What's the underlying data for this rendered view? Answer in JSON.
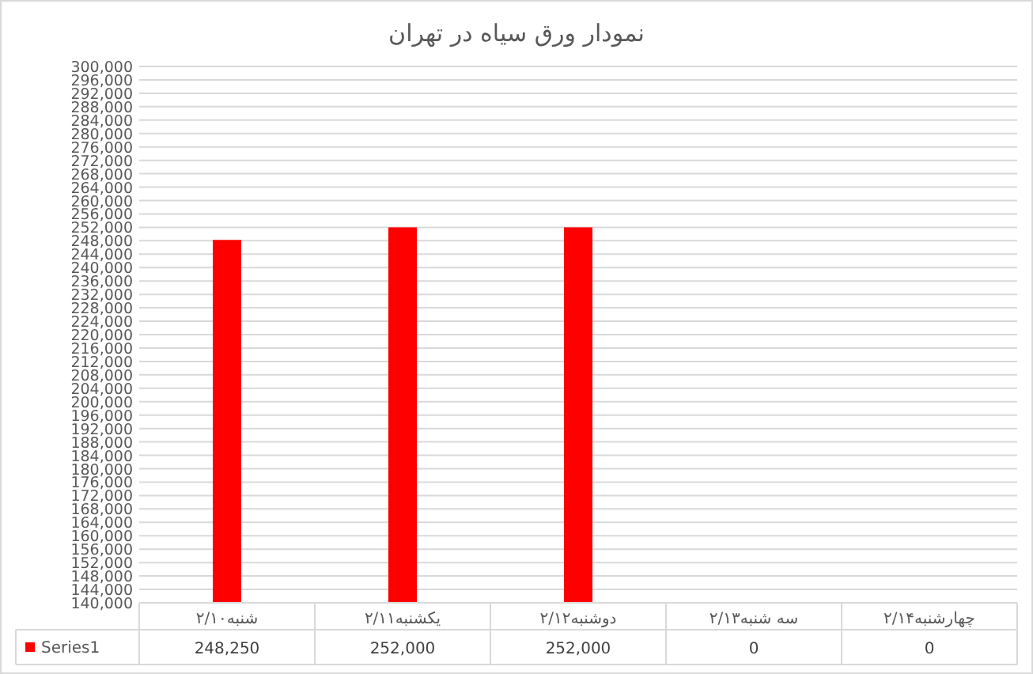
{
  "chart_data": {
    "type": "bar",
    "title": "نمودار ورق سیاه در تهران",
    "categories": [
      "شنبه۲/۱۰",
      "یکشنبه۲/۱۱",
      "دوشنبه۲/۱۲",
      "سه شنبه۲/۱۳",
      "چهارشنبه۲/۱۴"
    ],
    "series": [
      {
        "name": "Series1",
        "color": "#ff0000",
        "values": [
          248250,
          252000,
          252000,
          null,
          null
        ],
        "value_labels": [
          "248,250",
          "252,000",
          "252,000",
          "0",
          "0"
        ]
      }
    ],
    "ylim": [
      140000,
      300000
    ],
    "yticks": [
      {
        "value": 140000,
        "label": "140,000"
      },
      {
        "value": 144000,
        "label": "144,000"
      },
      {
        "value": 148000,
        "label": "148,000"
      },
      {
        "value": 152000,
        "label": "152,000"
      },
      {
        "value": 156000,
        "label": "156,000"
      },
      {
        "value": 160000,
        "label": "160,000"
      },
      {
        "value": 164000,
        "label": "164,000"
      },
      {
        "value": 168000,
        "label": "168,000"
      },
      {
        "value": 172000,
        "label": "172,000"
      },
      {
        "value": 176000,
        "label": "176,000"
      },
      {
        "value": 180000,
        "label": "180,000"
      },
      {
        "value": 184000,
        "label": "184,000"
      },
      {
        "value": 188000,
        "label": "188,000"
      },
      {
        "value": 192000,
        "label": "192,000"
      },
      {
        "value": 196000,
        "label": "196,000"
      },
      {
        "value": 200000,
        "label": "200,000"
      },
      {
        "value": 204000,
        "label": "204,000"
      },
      {
        "value": 208000,
        "label": "208,000"
      },
      {
        "value": 212000,
        "label": "212,000"
      },
      {
        "value": 216000,
        "label": "216,000"
      },
      {
        "value": 220000,
        "label": "220,000"
      },
      {
        "value": 224000,
        "label": "224,000"
      },
      {
        "value": 228000,
        "label": "228,000"
      },
      {
        "value": 232000,
        "label": "232,000"
      },
      {
        "value": 236000,
        "label": "236,000"
      },
      {
        "value": 240000,
        "label": "240,000"
      },
      {
        "value": 244000,
        "label": "244,000"
      },
      {
        "value": 248000,
        "label": "248,000"
      },
      {
        "value": 252000,
        "label": "252,000"
      },
      {
        "value": 256000,
        "label": "256,000"
      },
      {
        "value": 260000,
        "label": "260,000"
      },
      {
        "value": 264000,
        "label": "264,000"
      },
      {
        "value": 268000,
        "label": "268,000"
      },
      {
        "value": 272000,
        "label": "272,000"
      },
      {
        "value": 276000,
        "label": "276,000"
      },
      {
        "value": 280000,
        "label": "280,000"
      },
      {
        "value": 284000,
        "label": "284,000"
      },
      {
        "value": 288000,
        "label": "288,000"
      },
      {
        "value": 292000,
        "label": "292,000"
      },
      {
        "value": 296000,
        "label": "296,000"
      },
      {
        "value": 300000,
        "label": "300,000"
      }
    ],
    "grid": "y",
    "legend": "bottom"
  }
}
